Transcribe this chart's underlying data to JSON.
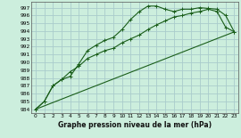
{
  "title": "Graphe pression niveau de la mer (hPa)",
  "bg_color": "#cceedd",
  "grid_color": "#aacccc",
  "line_color": "#1a5e1a",
  "xlim": [
    -0.5,
    23.5
  ],
  "ylim": [
    983.5,
    997.8
  ],
  "yticks": [
    984,
    985,
    986,
    987,
    988,
    989,
    990,
    991,
    992,
    993,
    994,
    995,
    996,
    997
  ],
  "xticks": [
    0,
    1,
    2,
    3,
    4,
    5,
    6,
    7,
    8,
    9,
    10,
    11,
    12,
    13,
    14,
    15,
    16,
    17,
    18,
    19,
    20,
    21,
    22,
    23
  ],
  "line1_x": [
    0,
    1,
    2,
    3,
    4,
    5,
    6,
    7,
    8,
    9,
    10,
    11,
    12,
    13,
    14,
    15,
    16,
    17,
    18,
    19,
    20,
    21,
    22,
    23
  ],
  "line1_y": [
    984.0,
    985.0,
    987.0,
    987.8,
    988.2,
    989.8,
    991.5,
    992.2,
    992.8,
    993.2,
    994.2,
    995.5,
    996.5,
    997.2,
    997.2,
    996.8,
    996.5,
    996.8,
    996.8,
    997.0,
    996.9,
    996.8,
    996.0,
    993.9
  ],
  "line2_x": [
    0,
    1,
    2,
    3,
    4,
    5,
    6,
    7,
    8,
    9,
    10,
    11,
    12,
    13,
    14,
    15,
    16,
    17,
    18,
    19,
    20,
    21,
    22,
    23
  ],
  "line2_y": [
    984.0,
    985.0,
    987.0,
    987.8,
    988.8,
    989.5,
    990.5,
    991.0,
    991.5,
    991.8,
    992.5,
    993.0,
    993.5,
    994.2,
    994.8,
    995.3,
    995.8,
    996.0,
    996.3,
    996.5,
    996.8,
    996.5,
    994.5,
    993.9
  ],
  "line3_x": [
    0,
    23
  ],
  "line3_y": [
    984.0,
    993.9
  ],
  "marker": "+"
}
